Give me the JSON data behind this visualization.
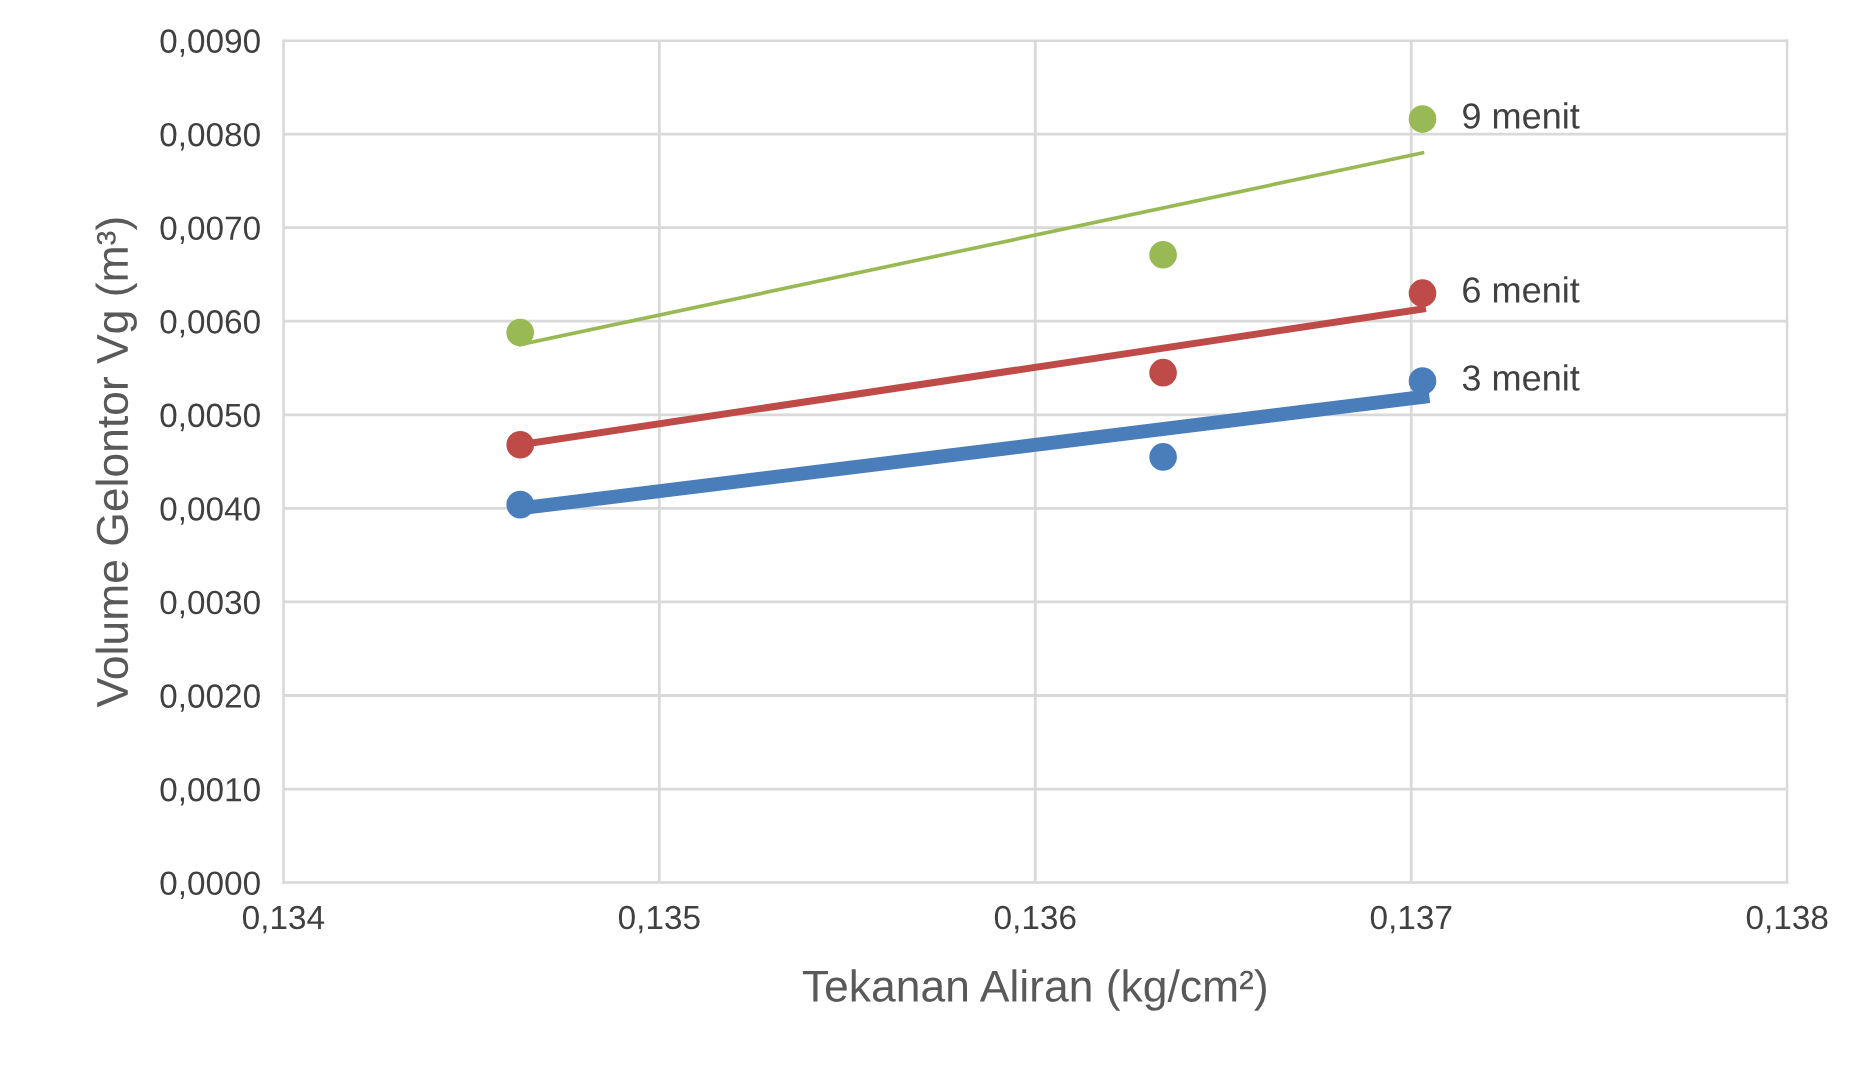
{
  "chart_data": {
    "type": "scatter",
    "xlabel": "Tekanan Aliran (kg/cm²)",
    "ylabel": "Volume Gelontor Vg (m³)",
    "xlim": [
      0.134,
      0.138
    ],
    "ylim": [
      0,
      0.009
    ],
    "xticks": [
      {
        "value": 0.134,
        "label": "0,134"
      },
      {
        "value": 0.135,
        "label": "0,135"
      },
      {
        "value": 0.136,
        "label": "0,136"
      },
      {
        "value": 0.137,
        "label": "0,137"
      },
      {
        "value": 0.138,
        "label": "0,138"
      }
    ],
    "yticks": [
      {
        "value": 0,
        "label": "0,0000"
      },
      {
        "value": 0.001,
        "label": "0,0010"
      },
      {
        "value": 0.002,
        "label": "0,0020"
      },
      {
        "value": 0.003,
        "label": "0,0030"
      },
      {
        "value": 0.004,
        "label": "0,0040"
      },
      {
        "value": 0.005,
        "label": "0,0050"
      },
      {
        "value": 0.006,
        "label": "0,0060"
      },
      {
        "value": 0.007,
        "label": "0,0070"
      },
      {
        "value": 0.008,
        "label": "0,0080"
      },
      {
        "value": 0.009,
        "label": "0,0090"
      }
    ],
    "grid": true,
    "legend": false,
    "marker": "circle",
    "series": [
      {
        "type": "line",
        "color": "#4a7ebb",
        "x": [
          0.13463,
          0.13703
        ],
        "values": [
          0.004,
          0.00519
        ],
        "marker": "none"
      },
      {
        "type": "line",
        "color": "#be4b48",
        "x": [
          0.13463,
          0.13703
        ],
        "values": [
          0.00468,
          0.00613
        ],
        "marker": "none"
      },
      {
        "type": "line",
        "color": "#98b954",
        "x": [
          0.13463,
          0.13703
        ],
        "values": [
          0.00575,
          0.0078
        ],
        "marker": "none"
      },
      {
        "name": "3 menit",
        "color": "#4a7ebb",
        "x": [
          0.13463,
          0.13634,
          0.13703
        ],
        "values": [
          0.00404,
          0.00455,
          0.00536
        ]
      },
      {
        "name": "6 menit",
        "color": "#be4b48",
        "x": [
          0.13463,
          0.13634,
          0.13703
        ],
        "values": [
          0.00468,
          0.00545,
          0.0063
        ]
      },
      {
        "name": "9 menit",
        "color": "#98b954",
        "x": [
          0.13463,
          0.13634,
          0.13703
        ],
        "values": [
          0.00588,
          0.00671,
          0.00816
        ]
      }
    ]
  }
}
